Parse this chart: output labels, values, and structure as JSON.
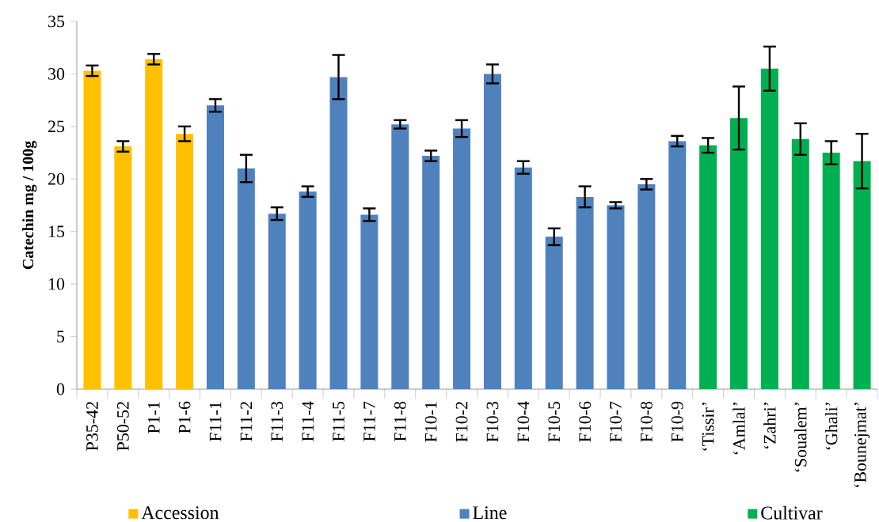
{
  "chart_data": {
    "type": "bar",
    "ylabel": "Catechin mg / 100g",
    "categories": [
      "P35-42",
      "P50-52",
      "P1-1",
      "P1-6",
      "F11-1",
      "F11-2",
      "F11-3",
      "F11-4",
      "F11-5",
      "F11-7",
      "F11-8",
      "F10-1",
      "F10-2",
      "F10-3",
      "F10-4",
      "F10-5",
      "F10-6",
      "F10-7",
      "F10-8",
      "F10-9",
      "‘Tissir’",
      "‘Amlal’",
      "‘Zahri’",
      "‘Soualem’",
      "‘Ghali’",
      "‘Bounejmat’"
    ],
    "series": [
      {
        "name": "Accession",
        "color": "#ffc000",
        "values": [
          30.3,
          23.1,
          31.4,
          24.3,
          null,
          null,
          null,
          null,
          null,
          null,
          null,
          null,
          null,
          null,
          null,
          null,
          null,
          null,
          null,
          null,
          null,
          null,
          null,
          null,
          null,
          null
        ],
        "errors": [
          0.5,
          0.5,
          0.5,
          0.7,
          null,
          null,
          null,
          null,
          null,
          null,
          null,
          null,
          null,
          null,
          null,
          null,
          null,
          null,
          null,
          null,
          null,
          null,
          null,
          null,
          null,
          null
        ]
      },
      {
        "name": "Line",
        "color": "#4f81bd",
        "values": [
          null,
          null,
          null,
          null,
          27.0,
          21.0,
          16.7,
          18.8,
          29.7,
          16.6,
          25.2,
          22.2,
          24.8,
          30.0,
          21.1,
          14.5,
          18.3,
          17.5,
          19.5,
          23.6,
          null,
          null,
          null,
          null,
          null,
          null
        ],
        "errors": [
          null,
          null,
          null,
          null,
          0.6,
          1.3,
          0.6,
          0.5,
          2.1,
          0.6,
          0.4,
          0.5,
          0.8,
          0.9,
          0.6,
          0.8,
          1.0,
          0.3,
          0.5,
          0.5,
          null,
          null,
          null,
          null,
          null,
          null
        ]
      },
      {
        "name": "Cultivar",
        "color": "#00b050",
        "values": [
          null,
          null,
          null,
          null,
          null,
          null,
          null,
          null,
          null,
          null,
          null,
          null,
          null,
          null,
          null,
          null,
          null,
          null,
          null,
          null,
          23.2,
          25.8,
          30.5,
          23.8,
          22.5,
          21.7
        ],
        "errors": [
          null,
          null,
          null,
          null,
          null,
          null,
          null,
          null,
          null,
          null,
          null,
          null,
          null,
          null,
          null,
          null,
          null,
          null,
          null,
          null,
          0.7,
          3.0,
          2.1,
          1.5,
          1.1,
          2.6
        ]
      }
    ],
    "ylim": [
      0,
      35
    ],
    "yticks": [
      0,
      5,
      10,
      15,
      20,
      25,
      30,
      35
    ],
    "grid": false,
    "legend": "bottom"
  }
}
